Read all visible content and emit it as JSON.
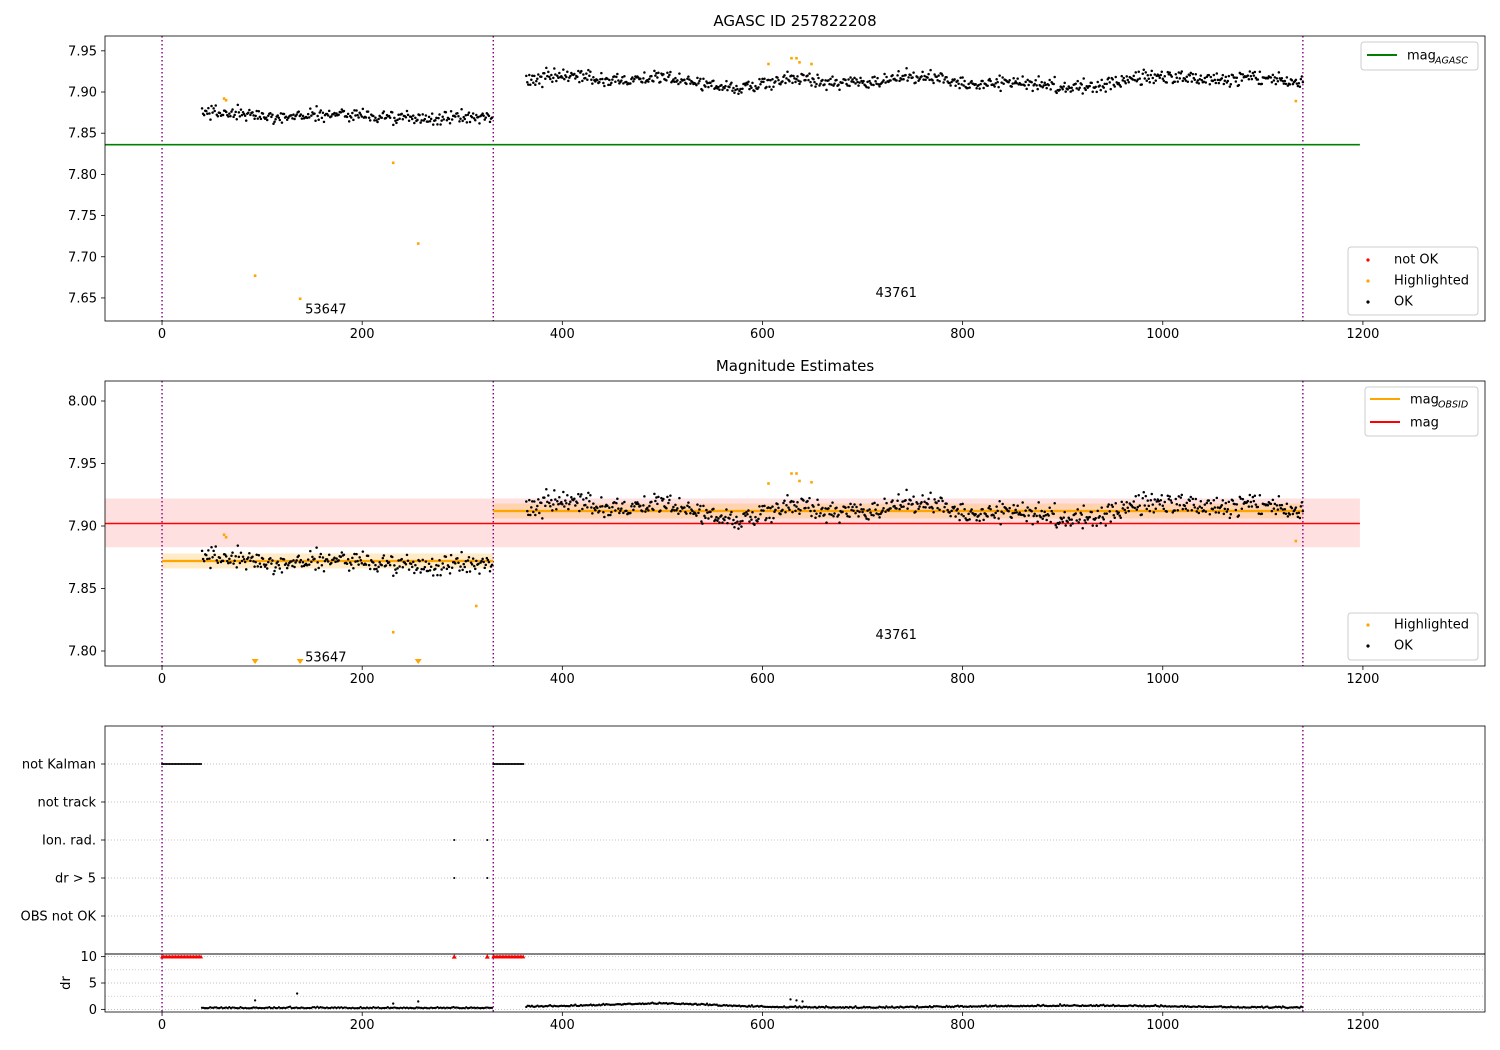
{
  "chart_data": [
    {
      "type": "scatter",
      "title": "AGASC ID 257822208",
      "xlim": [
        -57,
        1322
      ],
      "ylim": [
        7.622,
        7.968
      ],
      "xticks": [
        0,
        200,
        400,
        600,
        800,
        1000,
        1200
      ],
      "yticks": [
        7.65,
        7.7,
        7.75,
        7.8,
        7.85,
        7.9,
        7.95
      ],
      "vlines": [
        0,
        331,
        1140
      ],
      "hline": {
        "label": "mag",
        "sub": "AGASC",
        "y": 7.836,
        "x": [
          -57,
          1197
        ],
        "color": "#008000"
      },
      "segments": [
        {
          "obsid": "53647",
          "x": [
            40,
            330
          ],
          "base": 7.874,
          "ok_spread": 0.007
        },
        {
          "obsid": "43761",
          "x": [
            364,
            1140
          ],
          "base": 7.913,
          "ok_spread": 0.007
        }
      ],
      "annotations": [
        {
          "text": "53647",
          "x": 143,
          "y": 7.636
        },
        {
          "text": "43761",
          "x": 713,
          "y": 7.656
        }
      ],
      "highlighted": [
        {
          "x": 62,
          "y": 7.892
        },
        {
          "x": 64,
          "y": 7.89
        },
        {
          "x": 93,
          "y": 7.677
        },
        {
          "x": 138,
          "y": 7.649
        },
        {
          "x": 231,
          "y": 7.814
        },
        {
          "x": 256,
          "y": 7.716
        },
        {
          "x": 606,
          "y": 7.934
        },
        {
          "x": 629,
          "y": 7.941
        },
        {
          "x": 634,
          "y": 7.941
        },
        {
          "x": 637,
          "y": 7.936
        },
        {
          "x": 649,
          "y": 7.934
        },
        {
          "x": 1133,
          "y": 7.889
        }
      ],
      "legend_lines": {
        "placement": "upper right",
        "entries": [
          {
            "label": "mag",
            "sub": "AGASC",
            "color": "#008000"
          }
        ]
      },
      "legend_points": {
        "placement": "lower right",
        "entries": [
          {
            "label": "not OK",
            "color": "#ff0000"
          },
          {
            "label": "Highlighted",
            "color": "#ffa500"
          },
          {
            "label": "OK",
            "color": "#000000"
          }
        ]
      }
    },
    {
      "type": "scatter",
      "title": "Magnitude Estimates",
      "xlim": [
        -57,
        1322
      ],
      "ylim": [
        7.788,
        8.016
      ],
      "xticks": [
        0,
        200,
        400,
        600,
        800,
        1000,
        1200
      ],
      "yticks": [
        7.8,
        7.85,
        7.9,
        7.95,
        8.0
      ],
      "vlines": [
        0,
        331,
        1140
      ],
      "mag": {
        "label": "mag",
        "y": 7.902,
        "band": [
          7.883,
          7.922
        ],
        "x": [
          -57,
          1197
        ],
        "color": "#ff0000"
      },
      "mag_obsid": {
        "label": "mag",
        "sub": "OBSID",
        "color": "#ffa500",
        "segments": [
          {
            "x": [
              0,
              331
            ],
            "y": 7.872,
            "band": [
              7.866,
              7.878
            ]
          },
          {
            "x": [
              331,
              1140
            ],
            "y": 7.912,
            "band": [
              7.906,
              7.918
            ]
          }
        ]
      },
      "annotations": [
        {
          "text": "53647",
          "x": 143,
          "y": 7.795
        },
        {
          "text": "43761",
          "x": 713,
          "y": 7.813
        }
      ],
      "highlighted": [
        {
          "x": 62,
          "y": 7.893
        },
        {
          "x": 64,
          "y": 7.891
        },
        {
          "x": 231,
          "y": 7.815
        },
        {
          "x": 314,
          "y": 7.836
        },
        {
          "x": 606,
          "y": 7.934
        },
        {
          "x": 629,
          "y": 7.942
        },
        {
          "x": 634,
          "y": 7.942
        },
        {
          "x": 637,
          "y": 7.936
        },
        {
          "x": 649,
          "y": 7.935
        },
        {
          "x": 1133,
          "y": 7.888
        }
      ],
      "offscale": [
        {
          "x": 93
        },
        {
          "x": 138
        },
        {
          "x": 256
        }
      ],
      "legend_lines": {
        "placement": "upper right",
        "entries": [
          {
            "label": "mag",
            "sub": "OBSID",
            "color": "#ffa500"
          },
          {
            "label": "mag",
            "color": "#ff0000"
          }
        ]
      },
      "legend_points": {
        "placement": "lower right",
        "entries": [
          {
            "label": "Highlighted",
            "color": "#ffa500"
          },
          {
            "label": "OK",
            "color": "#000000"
          }
        ]
      }
    },
    {
      "type": "scatter",
      "xlim": [
        -57,
        1322
      ],
      "xticks": [
        0,
        200,
        400,
        600,
        800,
        1000,
        1200
      ],
      "vlines": [
        0,
        331,
        1140
      ],
      "categories": [
        "not Kalman",
        "not track",
        "Ion. rad.",
        "dr > 5",
        "OBS not OK"
      ],
      "flags": {
        "not Kalman": [
          [
            0,
            40
          ],
          [
            331,
            361
          ]
        ],
        "not track": [],
        "Ion. rad.": [
          [
            292,
            292
          ],
          [
            325,
            325
          ]
        ],
        "dr > 5": [
          [
            292,
            292
          ],
          [
            325,
            325
          ]
        ],
        "OBS not OK": []
      }
    },
    {
      "type": "scatter",
      "ylabel": "dr",
      "xlim": [
        -57,
        1322
      ],
      "ylim": [
        -0.5,
        10.5
      ],
      "xticks": [
        0,
        200,
        400,
        600,
        800,
        1000,
        1200
      ],
      "yticks": [
        0,
        5,
        10
      ],
      "vlines": [
        0,
        331,
        1140
      ],
      "clipped": [
        [
          0,
          40
        ],
        [
          292,
          292
        ],
        [
          325,
          325
        ],
        [
          331,
          361
        ]
      ],
      "clip_value": 10,
      "outliers": [
        {
          "x": 93,
          "y": 1.7
        },
        {
          "x": 135,
          "y": 3.0
        },
        {
          "x": 231,
          "y": 1.1
        },
        {
          "x": 256,
          "y": 1.5
        },
        {
          "x": 628,
          "y": 1.9
        },
        {
          "x": 634,
          "y": 1.7
        },
        {
          "x": 640,
          "y": 1.5
        }
      ],
      "segments": [
        {
          "x": [
            40,
            330
          ],
          "base": 0.2
        },
        {
          "x": [
            364,
            1140
          ],
          "base": 0.6
        }
      ]
    }
  ]
}
